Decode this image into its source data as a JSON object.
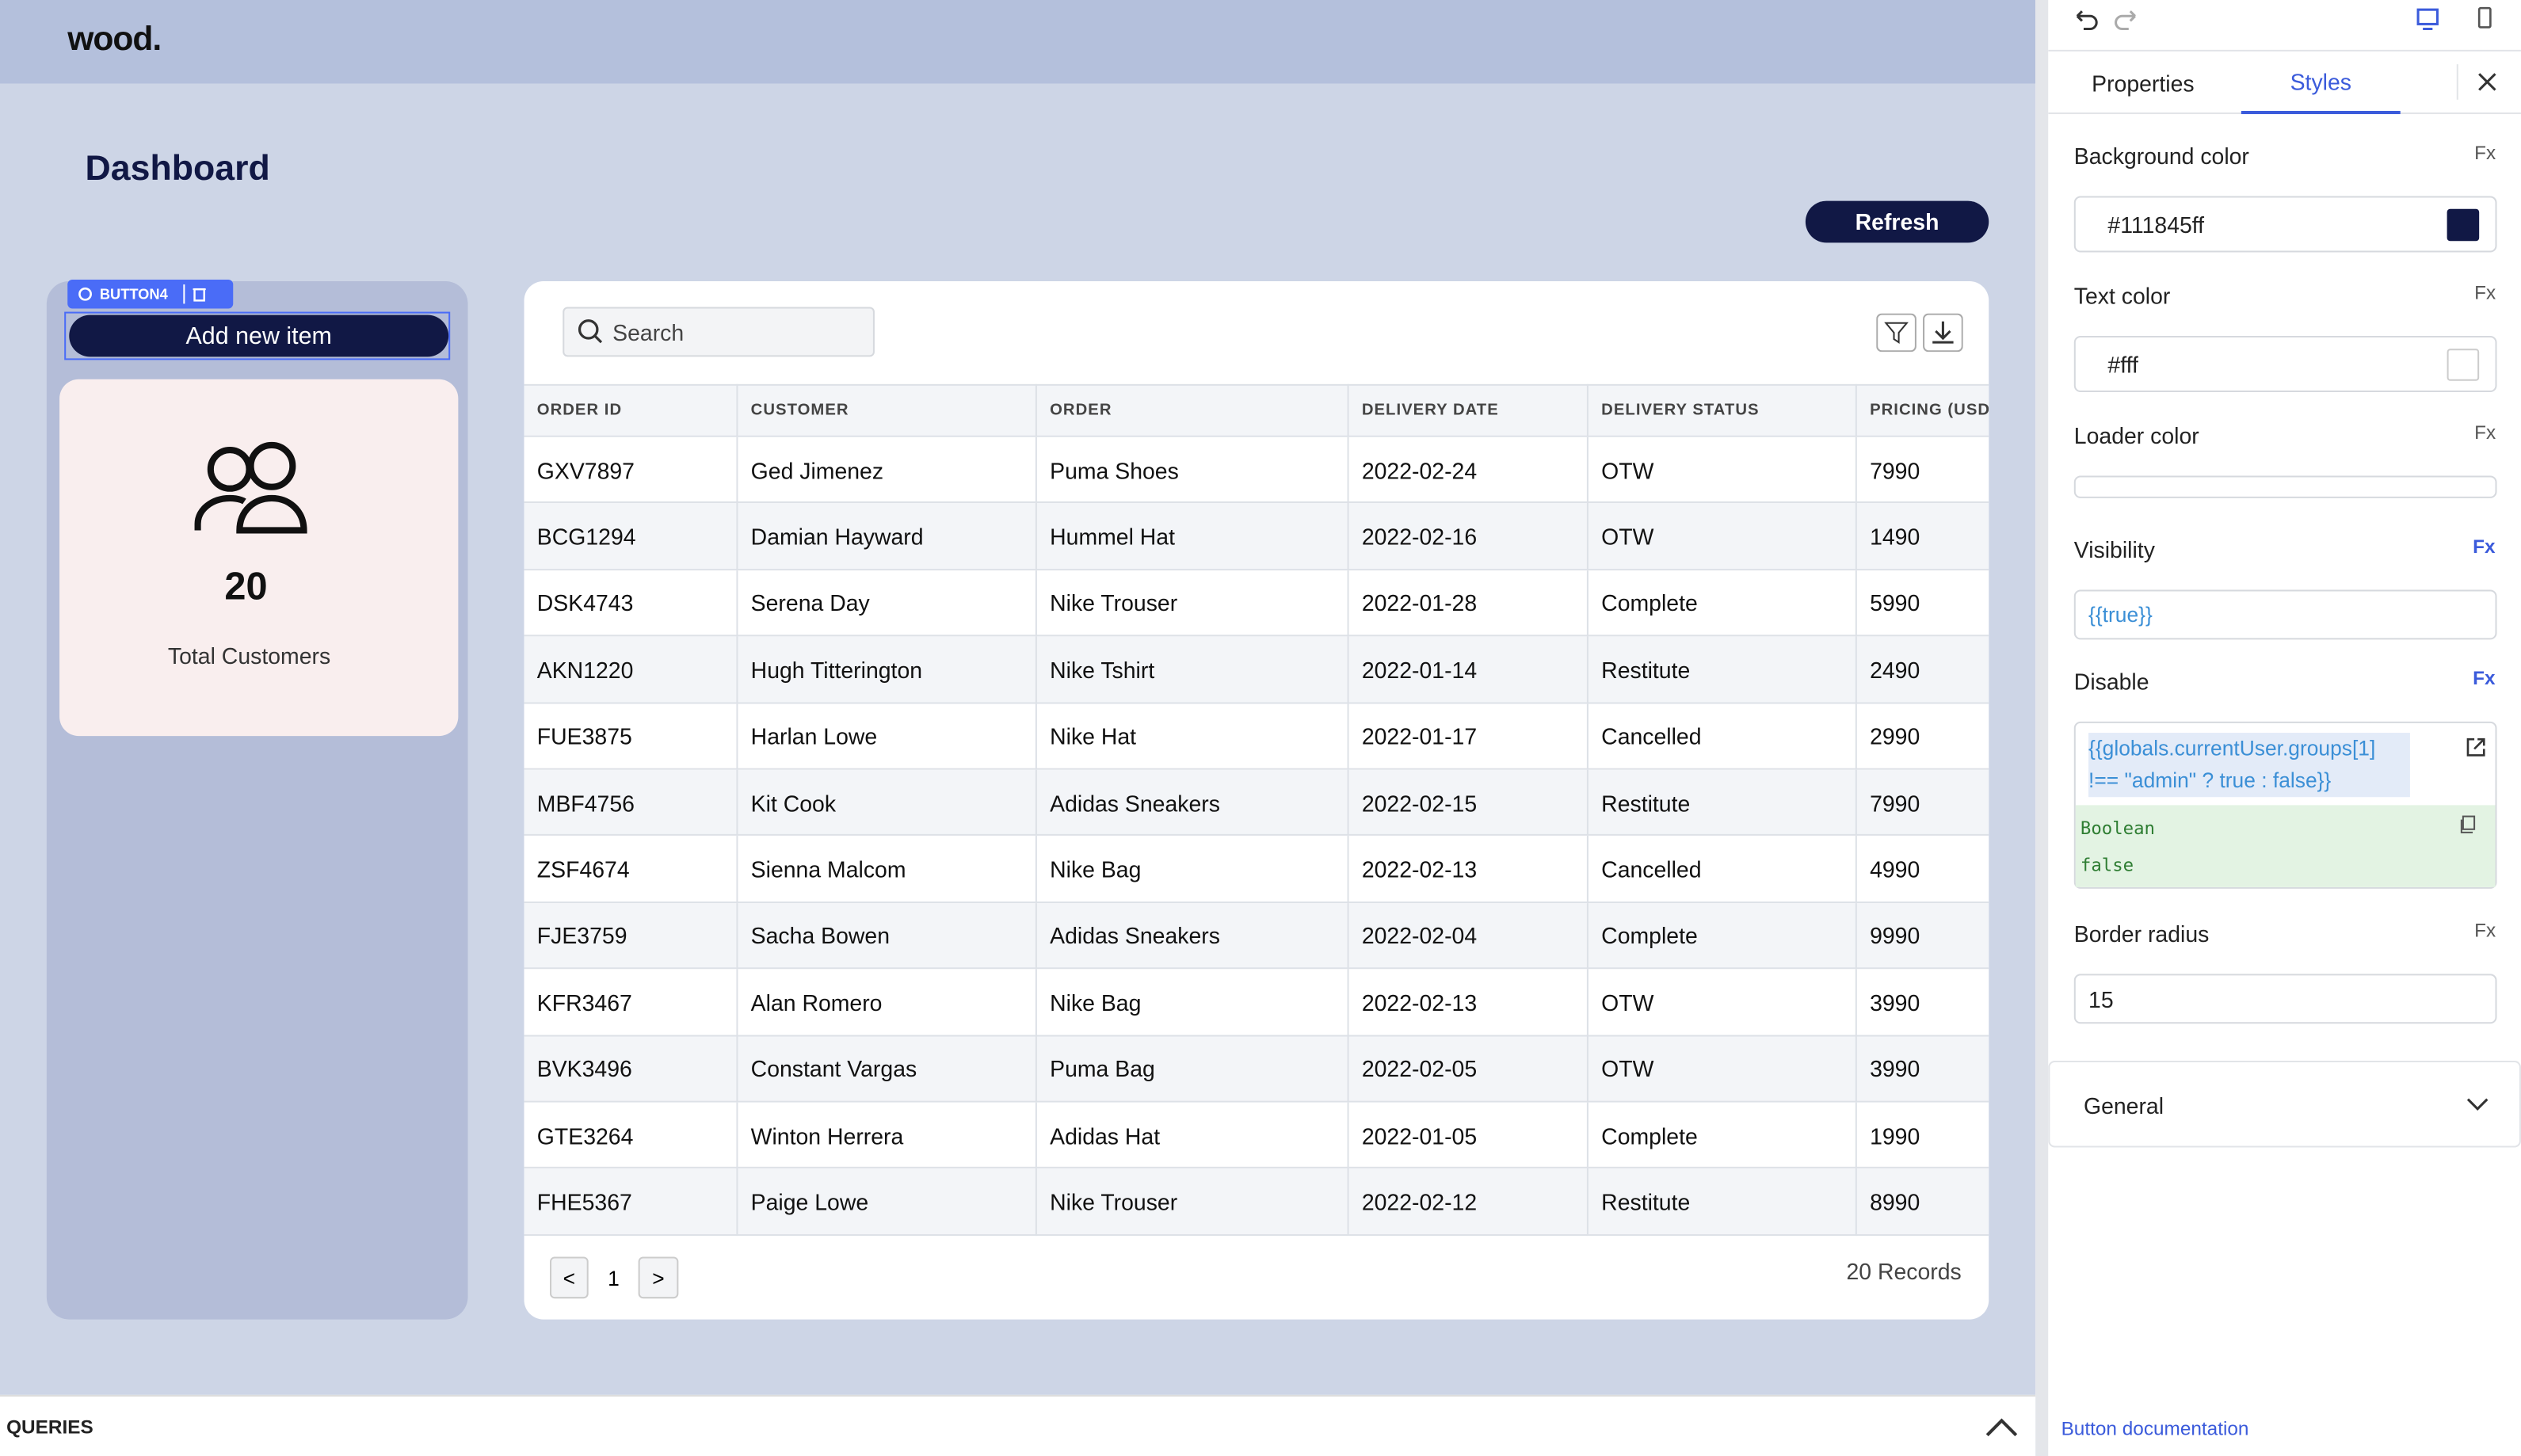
{
  "header": {
    "logo": "wood."
  },
  "canvas": {
    "title": "Dashboard",
    "refresh": "Refresh",
    "selected_tag": "BUTTON4",
    "add_button": "Add new item",
    "card": {
      "value": "20",
      "label": "Total Customers"
    },
    "table": {
      "search_placeholder": "Search",
      "columns": [
        "ORDER ID",
        "CUSTOMER",
        "ORDER",
        "DELIVERY DATE",
        "DELIVERY STATUS",
        "PRICING (USD"
      ],
      "rows": [
        [
          "GXV7897",
          "Ged Jimenez",
          "Puma Shoes",
          "2022-02-24",
          "OTW",
          "7990"
        ],
        [
          "BCG1294",
          "Damian Hayward",
          "Hummel Hat",
          "2022-02-16",
          "OTW",
          "1490"
        ],
        [
          "DSK4743",
          "Serena Day",
          "Nike Trouser",
          "2022-01-28",
          "Complete",
          "5990"
        ],
        [
          "AKN1220",
          "Hugh Titterington",
          "Nike Tshirt",
          "2022-01-14",
          "Restitute",
          "2490"
        ],
        [
          "FUE3875",
          "Harlan Lowe",
          "Nike Hat",
          "2022-01-17",
          "Cancelled",
          "2990"
        ],
        [
          "MBF4756",
          "Kit Cook",
          "Adidas Sneakers",
          "2022-02-15",
          "Restitute",
          "7990"
        ],
        [
          "ZSF4674",
          "Sienna Malcom",
          "Nike Bag",
          "2022-02-13",
          "Cancelled",
          "4990"
        ],
        [
          "FJE3759",
          "Sacha Bowen",
          "Adidas Sneakers",
          "2022-02-04",
          "Complete",
          "9990"
        ],
        [
          "KFR3467",
          "Alan Romero",
          "Nike Bag",
          "2022-02-13",
          "OTW",
          "3990"
        ],
        [
          "BVK3496",
          "Constant Vargas",
          "Puma Bag",
          "2022-02-05",
          "OTW",
          "3990"
        ],
        [
          "GTE3264",
          "Winton Herrera",
          "Adidas Hat",
          "2022-01-05",
          "Complete",
          "1990"
        ],
        [
          "FHE5367",
          "Paige Lowe",
          "Nike Trouser",
          "2022-02-12",
          "Restitute",
          "8990"
        ]
      ],
      "pagination": {
        "prev": "<",
        "page": "1",
        "next": ">"
      },
      "records": "20 Records"
    }
  },
  "queries": "QUERIES",
  "panel": {
    "tabs": [
      "Properties",
      "Styles"
    ],
    "fields": {
      "background_color": {
        "label": "Background color",
        "fx": "Fx",
        "value": "#111845ff"
      },
      "text_color": {
        "label": "Text color",
        "fx": "Fx",
        "value": "#fff"
      },
      "loader_color": {
        "label": "Loader color",
        "fx": "Fx"
      },
      "visibility": {
        "label": "Visibility",
        "fx": "Fx",
        "value": "{{true}}"
      },
      "disable": {
        "label": "Disable",
        "fx": "Fx",
        "value": "{{globals.currentUser.groups[1] !== \"admin\" ? true : false}}",
        "result_type": "Boolean",
        "result": "false"
      },
      "border_radius": {
        "label": "Border radius",
        "fx": "Fx",
        "value": "15"
      }
    },
    "section": "General",
    "doc_link": "Button documentation"
  }
}
